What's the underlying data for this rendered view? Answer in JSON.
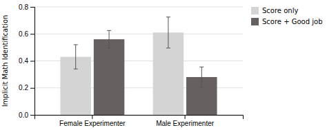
{
  "chart_data": {
    "type": "bar",
    "ylabel": "Implicit Math Identification",
    "categories": [
      "Female Experimenter",
      "Male Experimenter"
    ],
    "series": [
      {
        "name": "Score only",
        "color": "#d4d4d4",
        "values": [
          0.43,
          0.61
        ],
        "errors": [
          0.09,
          0.115
        ]
      },
      {
        "name": "Score + Good job",
        "color": "#666060",
        "values": [
          0.56,
          0.28
        ],
        "errors": [
          0.065,
          0.075
        ]
      }
    ],
    "ylim": [
      0,
      0.8
    ],
    "yticks": [
      {
        "value": 0,
        "label": "0.0"
      },
      0.2,
      0.4,
      0.6,
      0.8
    ],
    "grid": true,
    "legend": "upper right"
  }
}
